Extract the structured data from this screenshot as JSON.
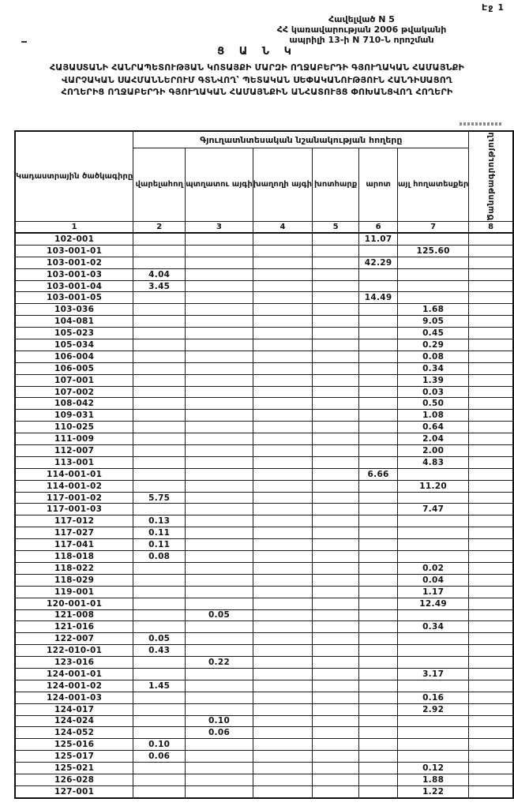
{
  "page": {
    "number_label": "Էջ 1"
  },
  "appendix": {
    "lines": [
      "Հավելված N 5",
      "ՀՀ կառավարության 2006 թվականի",
      "ապրիլի 13-ի N 710-Ն որոշման"
    ]
  },
  "title": {
    "heading": "Ց Ա Ն Կ",
    "lines": [
      "ՀԱՅԱՍՏԱՆԻ ՀԱՆՐԱՊԵՏՈՒԹՅԱՆ ԿՈՏԱՅՔԻ ՄԱՐԶԻ ՈՂՋԱԲԵՐԴԻ ԳՅՈՒՂԱԿԱՆ ՀԱՄԱՅՆՔԻ",
      "ՎԱՐՉԱԿԱՆ ՍԱՀՄԱՆՆԵՐՈՒՄ ԳՏՆՎՈՂ՝ ՊԵՏԱԿԱՆ ՍԵՓԱԿԱՆՈՒԹՅՈՒՆ ՀԱՆԴԻՍԱՑՈՂ",
      "ՀՈՂԵՐԻՑ ՈՂՋԱԲԵՐԴԻ ԳՅՈՒՂԱԿԱՆ ՀԱՄԱՅՆՔԻՆ ԱՆՀԱՏՈՒՅՑ ՓՈԽԱՆՑՎՈՂ ՀՈՂԵՐԻ"
    ]
  },
  "table": {
    "code_header": "Կադաստրային ծածկագիրը",
    "group_header": "Գյուղատնտեսական նշանակության հողերը",
    "sub_headers": [
      "վարելահող",
      "պտղատու այգի",
      "խաղողի այգի",
      "խոտհարք",
      "արոտ",
      "այլ հողատեսքեր"
    ],
    "note_header": "Ծանոթագրություն",
    "number_row": [
      "1",
      "2",
      "3",
      "4",
      "5",
      "6",
      "7",
      "8"
    ],
    "rows": [
      {
        "code": "102-001",
        "values": [
          "",
          "",
          "",
          "",
          "11.07",
          ""
        ],
        "note": ""
      },
      {
        "code": "103-001-01",
        "values": [
          "",
          "",
          "",
          "",
          "",
          "125.60"
        ],
        "note": ""
      },
      {
        "code": "103-001-02",
        "values": [
          "",
          "",
          "",
          "",
          "42.29",
          ""
        ],
        "note": ""
      },
      {
        "code": "103-001-03",
        "values": [
          "4.04",
          "",
          "",
          "",
          "",
          ""
        ],
        "note": ""
      },
      {
        "code": "103-001-04",
        "values": [
          "3.45",
          "",
          "",
          "",
          "",
          ""
        ],
        "note": ""
      },
      {
        "code": "103-001-05",
        "values": [
          "",
          "",
          "",
          "",
          "14.49",
          ""
        ],
        "note": ""
      },
      {
        "code": "103-036",
        "values": [
          "",
          "",
          "",
          "",
          "",
          "1.68"
        ],
        "note": ""
      },
      {
        "code": "104-081",
        "values": [
          "",
          "",
          "",
          "",
          "",
          "9.05"
        ],
        "note": ""
      },
      {
        "code": "105-023",
        "values": [
          "",
          "",
          "",
          "",
          "",
          "0.45"
        ],
        "note": ""
      },
      {
        "code": "105-034",
        "values": [
          "",
          "",
          "",
          "",
          "",
          "0.29"
        ],
        "note": ""
      },
      {
        "code": "106-004",
        "values": [
          "",
          "",
          "",
          "",
          "",
          "0.08"
        ],
        "note": ""
      },
      {
        "code": "106-005",
        "values": [
          "",
          "",
          "",
          "",
          "",
          "0.34"
        ],
        "note": ""
      },
      {
        "code": "107-001",
        "values": [
          "",
          "",
          "",
          "",
          "",
          "1.39"
        ],
        "note": ""
      },
      {
        "code": "107-002",
        "values": [
          "",
          "",
          "",
          "",
          "",
          "0.03"
        ],
        "note": ""
      },
      {
        "code": "108-042",
        "values": [
          "",
          "",
          "",
          "",
          "",
          "0.50"
        ],
        "note": ""
      },
      {
        "code": "109-031",
        "values": [
          "",
          "",
          "",
          "",
          "",
          "1.08"
        ],
        "note": ""
      },
      {
        "code": "110-025",
        "values": [
          "",
          "",
          "",
          "",
          "",
          "0.64"
        ],
        "note": ""
      },
      {
        "code": "111-009",
        "values": [
          "",
          "",
          "",
          "",
          "",
          "2.04"
        ],
        "note": ""
      },
      {
        "code": "112-007",
        "values": [
          "",
          "",
          "",
          "",
          "",
          "2.00"
        ],
        "note": ""
      },
      {
        "code": "113-001",
        "values": [
          "",
          "",
          "",
          "",
          "",
          "4.83"
        ],
        "note": ""
      },
      {
        "code": "114-001-01",
        "values": [
          "",
          "",
          "",
          "",
          "6.66",
          ""
        ],
        "note": ""
      },
      {
        "code": "114-001-02",
        "values": [
          "",
          "",
          "",
          "",
          "",
          "11.20"
        ],
        "note": ""
      },
      {
        "code": "117-001-02",
        "values": [
          "5.75",
          "",
          "",
          "",
          "",
          ""
        ],
        "note": ""
      },
      {
        "code": "117-001-03",
        "values": [
          "",
          "",
          "",
          "",
          "",
          "7.47"
        ],
        "note": ""
      },
      {
        "code": "117-012",
        "values": [
          "0.13",
          "",
          "",
          "",
          "",
          ""
        ],
        "note": ""
      },
      {
        "code": "117-027",
        "values": [
          "0.11",
          "",
          "",
          "",
          "",
          ""
        ],
        "note": ""
      },
      {
        "code": "117-041",
        "values": [
          "0.11",
          "",
          "",
          "",
          "",
          ""
        ],
        "note": ""
      },
      {
        "code": "118-018",
        "values": [
          "0.08",
          "",
          "",
          "",
          "",
          ""
        ],
        "note": ""
      },
      {
        "code": "118-022",
        "values": [
          "",
          "",
          "",
          "",
          "",
          "0.02"
        ],
        "note": ""
      },
      {
        "code": "118-029",
        "values": [
          "",
          "",
          "",
          "",
          "",
          "0.04"
        ],
        "note": ""
      },
      {
        "code": "119-001",
        "values": [
          "",
          "",
          "",
          "",
          "",
          "1.17"
        ],
        "note": ""
      },
      {
        "code": "120-001-01",
        "values": [
          "",
          "",
          "",
          "",
          "",
          "12.49"
        ],
        "note": ""
      },
      {
        "code": "121-008",
        "values": [
          "",
          "0.05",
          "",
          "",
          "",
          ""
        ],
        "note": ""
      },
      {
        "code": "121-016",
        "values": [
          "",
          "",
          "",
          "",
          "",
          "0.34"
        ],
        "note": ""
      },
      {
        "code": "122-007",
        "values": [
          "0.05",
          "",
          "",
          "",
          "",
          ""
        ],
        "note": ""
      },
      {
        "code": "122-010-01",
        "values": [
          "0.43",
          "",
          "",
          "",
          "",
          ""
        ],
        "note": ""
      },
      {
        "code": "123-016",
        "values": [
          "",
          "0.22",
          "",
          "",
          "",
          ""
        ],
        "note": ""
      },
      {
        "code": "124-001-01",
        "values": [
          "",
          "",
          "",
          "",
          "",
          "3.17"
        ],
        "note": ""
      },
      {
        "code": "124-001-02",
        "values": [
          "1.45",
          "",
          "",
          "",
          "",
          ""
        ],
        "note": ""
      },
      {
        "code": "124-001-03",
        "values": [
          "",
          "",
          "",
          "",
          "",
          "0.16"
        ],
        "note": ""
      },
      {
        "code": "124-017",
        "values": [
          "",
          "",
          "",
          "",
          "",
          "2.92"
        ],
        "note": ""
      },
      {
        "code": "124-024",
        "values": [
          "",
          "0.10",
          "",
          "",
          "",
          ""
        ],
        "note": ""
      },
      {
        "code": "124-052",
        "values": [
          "",
          "0.06",
          "",
          "",
          "",
          ""
        ],
        "note": ""
      },
      {
        "code": "125-016",
        "values": [
          "0.10",
          "",
          "",
          "",
          "",
          ""
        ],
        "note": ""
      },
      {
        "code": "125-017",
        "values": [
          "0.06",
          "",
          "",
          "",
          "",
          ""
        ],
        "note": ""
      },
      {
        "code": "125-021",
        "values": [
          "",
          "",
          "",
          "",
          "",
          "0.12"
        ],
        "note": ""
      },
      {
        "code": "126-028",
        "values": [
          "",
          "",
          "",
          "",
          "",
          "1.88"
        ],
        "note": ""
      },
      {
        "code": "127-001",
        "values": [
          "",
          "",
          "",
          "",
          "",
          "1.22"
        ],
        "note": ""
      }
    ]
  }
}
